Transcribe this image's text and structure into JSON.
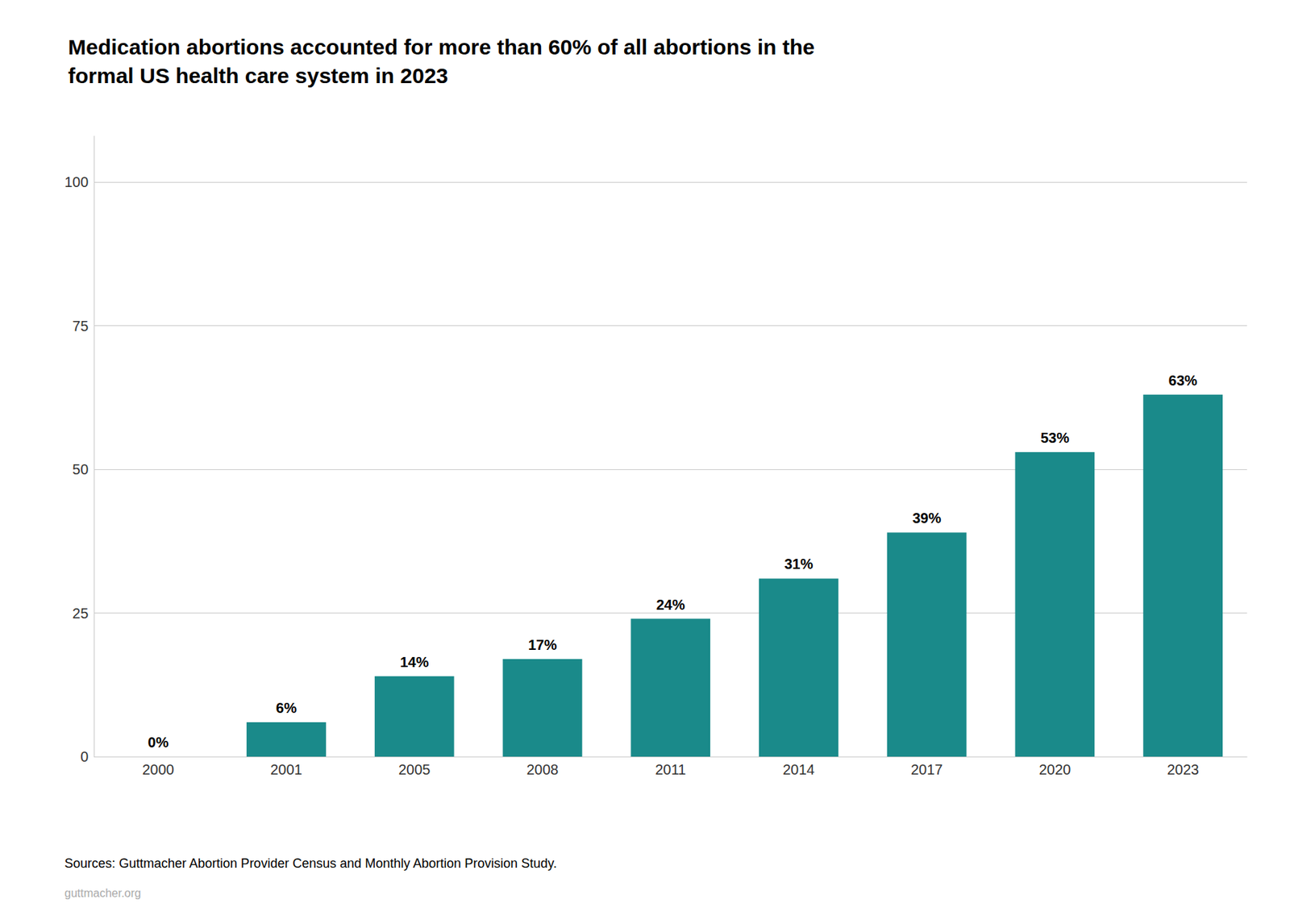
{
  "chart_data": {
    "type": "bar",
    "title": "Medication abortions accounted for more than 60% of all abortions in the\nformal US health care system in 2023",
    "categories": [
      "2000",
      "2001",
      "2005",
      "2008",
      "2011",
      "2014",
      "2017",
      "2020",
      "2023"
    ],
    "values": [
      0,
      6,
      14,
      17,
      24,
      31,
      39,
      53,
      63
    ],
    "value_labels": [
      "0%",
      "6%",
      "14%",
      "17%",
      "24%",
      "31%",
      "39%",
      "53%",
      "63%"
    ],
    "data_labels": true,
    "color": "#1a8a8a",
    "ylim": [
      0,
      108
    ],
    "yticks": [
      0,
      25,
      50,
      75,
      100
    ],
    "grid": true,
    "annotations": [
      "Sources: Guttmacher Abortion Provider Census and Monthly Abortion Provision Study.",
      "guttmacher.org"
    ]
  }
}
